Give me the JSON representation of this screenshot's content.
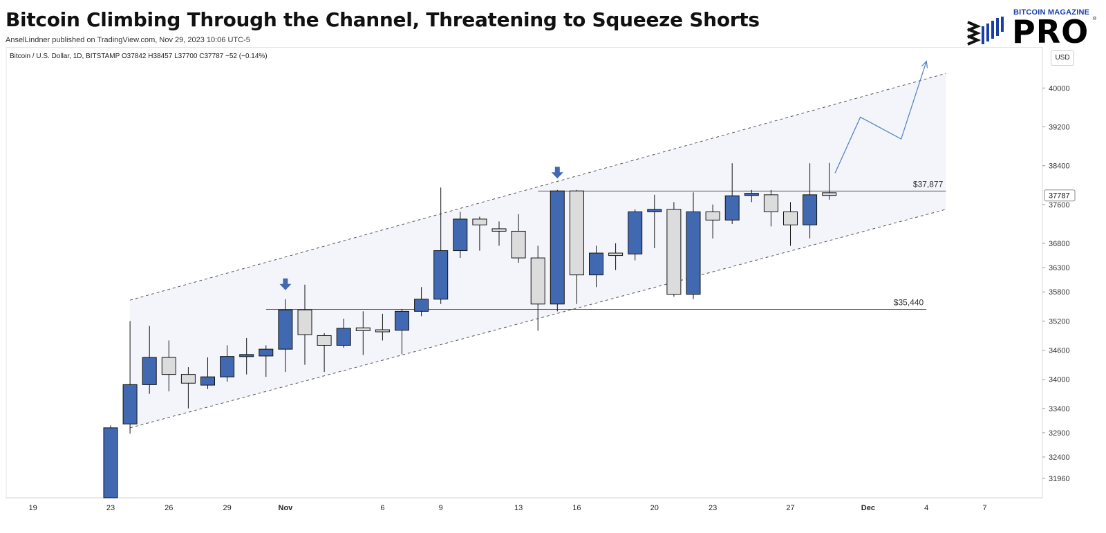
{
  "header": {
    "title": "Bitcoin Climbing Through the Channel, Threatening to Squeeze Shorts",
    "subtitle": "AnselLindner published on TradingView.com, Nov 29, 2023 10:06 UTC-5",
    "logo_top": "BITCOIN MAGAZINE",
    "logo_main": "PRO",
    "logo_reg": "®"
  },
  "toolbar": {
    "symbol_info": "Bitcoin / U.S. Dollar, 1D, BITSTAMP  O37842  H38457  L37700  C37787  −52 (−0.14%)",
    "currency_button": "USD"
  },
  "colors": {
    "up": "#4169b2",
    "down": "#dcdcdc",
    "wick": "#111111",
    "channel_fill": "#f3f5fb",
    "projection": "#5b86c4",
    "level_line": "#555555"
  },
  "chart_data": {
    "type": "candlestick",
    "ylim": [
      31560,
      40460
    ],
    "yticks": [
      31560,
      31960,
      32400,
      32900,
      33400,
      34000,
      34600,
      35200,
      35800,
      36300,
      36800,
      37600,
      38400,
      39200,
      40000
    ],
    "xticks": [
      {
        "day": 19,
        "label": "19"
      },
      {
        "day": 23,
        "label": "23"
      },
      {
        "day": 26,
        "label": "26"
      },
      {
        "day": 29,
        "label": "29"
      },
      {
        "day": 32,
        "label": "Nov"
      },
      {
        "day": 37,
        "label": "6"
      },
      {
        "day": 40,
        "label": "9"
      },
      {
        "day": 44,
        "label": "13"
      },
      {
        "day": 47,
        "label": "16"
      },
      {
        "day": 51,
        "label": "20"
      },
      {
        "day": 54,
        "label": "23"
      },
      {
        "day": 58,
        "label": "27"
      },
      {
        "day": 62,
        "label": "Dec"
      },
      {
        "day": 65,
        "label": "4"
      },
      {
        "day": 68,
        "label": "7"
      }
    ],
    "day_note": "day index counted from Oct 1, 2023 = 1",
    "candles": [
      {
        "day": 23,
        "o": 30990,
        "h": 33050,
        "l": 30650,
        "c": 33000
      },
      {
        "day": 24,
        "o": 33080,
        "h": 35200,
        "l": 32880,
        "c": 33890
      },
      {
        "day": 25,
        "o": 33890,
        "h": 35100,
        "l": 33700,
        "c": 34450
      },
      {
        "day": 26,
        "o": 34450,
        "h": 34800,
        "l": 33750,
        "c": 34100
      },
      {
        "day": 27,
        "o": 34100,
        "h": 34250,
        "l": 33400,
        "c": 33920
      },
      {
        "day": 28,
        "o": 33880,
        "h": 34450,
        "l": 33800,
        "c": 34050
      },
      {
        "day": 29,
        "o": 34050,
        "h": 34700,
        "l": 33950,
        "c": 34470
      },
      {
        "day": 30,
        "o": 34470,
        "h": 34850,
        "l": 34100,
        "c": 34510
      },
      {
        "day": 31,
        "o": 34480,
        "h": 34700,
        "l": 34050,
        "c": 34620
      },
      {
        "day": 32,
        "o": 34620,
        "h": 35650,
        "l": 34150,
        "c": 35430
      },
      {
        "day": 33,
        "o": 35430,
        "h": 35950,
        "l": 34300,
        "c": 34920
      },
      {
        "day": 34,
        "o": 34900,
        "h": 34950,
        "l": 34150,
        "c": 34700
      },
      {
        "day": 35,
        "o": 34700,
        "h": 35250,
        "l": 34650,
        "c": 35050
      },
      {
        "day": 36,
        "o": 35060,
        "h": 35400,
        "l": 34500,
        "c": 35000
      },
      {
        "day": 37,
        "o": 35020,
        "h": 35350,
        "l": 34800,
        "c": 35010
      },
      {
        "day": 38,
        "o": 35010,
        "h": 35450,
        "l": 34520,
        "c": 35400
      },
      {
        "day": 39,
        "o": 35400,
        "h": 35900,
        "l": 35300,
        "c": 35650
      },
      {
        "day": 40,
        "o": 35650,
        "h": 37950,
        "l": 35550,
        "c": 36650
      },
      {
        "day": 41,
        "o": 36650,
        "h": 37450,
        "l": 36500,
        "c": 37300
      },
      {
        "day": 42,
        "o": 37300,
        "h": 37350,
        "l": 36650,
        "c": 37180
      },
      {
        "day": 43,
        "o": 37100,
        "h": 37250,
        "l": 36750,
        "c": 37050
      },
      {
        "day": 44,
        "o": 37050,
        "h": 37400,
        "l": 36400,
        "c": 36500
      },
      {
        "day": 45,
        "o": 36500,
        "h": 36750,
        "l": 35000,
        "c": 35550
      },
      {
        "day": 46,
        "o": 35550,
        "h": 37900,
        "l": 35400,
        "c": 37880
      },
      {
        "day": 47,
        "o": 37880,
        "h": 37900,
        "l": 35550,
        "c": 36150
      },
      {
        "day": 48,
        "o": 36150,
        "h": 36750,
        "l": 35900,
        "c": 36600
      },
      {
        "day": 49,
        "o": 36600,
        "h": 36800,
        "l": 36250,
        "c": 36550
      },
      {
        "day": 50,
        "o": 36580,
        "h": 37500,
        "l": 36450,
        "c": 37450
      },
      {
        "day": 51,
        "o": 37450,
        "h": 37800,
        "l": 36700,
        "c": 37500
      },
      {
        "day": 52,
        "o": 37500,
        "h": 37650,
        "l": 35700,
        "c": 35750
      },
      {
        "day": 53,
        "o": 35750,
        "h": 37850,
        "l": 35650,
        "c": 37450
      },
      {
        "day": 54,
        "o": 37450,
        "h": 37600,
        "l": 36900,
        "c": 37280
      },
      {
        "day": 55,
        "o": 37280,
        "h": 38450,
        "l": 37200,
        "c": 37780
      },
      {
        "day": 56,
        "o": 37790,
        "h": 37900,
        "l": 37650,
        "c": 37830
      },
      {
        "day": 57,
        "o": 37800,
        "h": 37900,
        "l": 37150,
        "c": 37450
      },
      {
        "day": 58,
        "o": 37450,
        "h": 37650,
        "l": 36750,
        "c": 37180
      },
      {
        "day": 59,
        "o": 37180,
        "h": 38450,
        "l": 36900,
        "c": 37800
      },
      {
        "day": 60,
        "o": 37842,
        "h": 38457,
        "l": 37700,
        "c": 37787
      }
    ],
    "horizontal_levels": [
      {
        "value": 37877,
        "label": "$37,877",
        "from_day": 45,
        "to_day": 66
      },
      {
        "value": 35440,
        "label": "$35,440",
        "from_day": 31,
        "to_day": 65
      }
    ],
    "channel": {
      "upper": [
        {
          "day": 24,
          "value": 35630
        },
        {
          "day": 66,
          "value": 40300
        }
      ],
      "lower": [
        {
          "day": 24,
          "value": 33000
        },
        {
          "day": 66,
          "value": 37500
        }
      ]
    },
    "projection": [
      {
        "day": 60.3,
        "value": 38250
      },
      {
        "day": 61.6,
        "value": 39400
      },
      {
        "day": 63.7,
        "value": 38950
      },
      {
        "day": 65,
        "value": 40550
      }
    ],
    "markers": [
      {
        "day": 32,
        "value": 35850,
        "icon": "arrow-down-icon"
      },
      {
        "day": 46,
        "value": 38150,
        "icon": "arrow-down-icon"
      }
    ],
    "price_tag": {
      "value": 37787,
      "label": "37787"
    }
  }
}
